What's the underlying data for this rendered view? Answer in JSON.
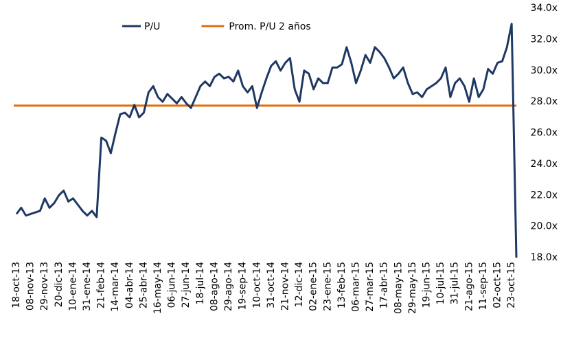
{
  "chart_data": {
    "type": "line",
    "categories": [
      "18-oct-13",
      null,
      null,
      "08-nov-13",
      null,
      null,
      "29-nov-13",
      null,
      null,
      "20-dic-13",
      null,
      null,
      "10-ene-14",
      null,
      null,
      "31-ene-14",
      null,
      null,
      "21-feb-14",
      null,
      null,
      "14-mar-14",
      null,
      null,
      "04-abr-14",
      null,
      null,
      "25-abr-14",
      null,
      null,
      "16-may-14",
      null,
      null,
      "06-jun-14",
      null,
      null,
      "27-jun-14",
      null,
      null,
      "18-jul-14",
      null,
      null,
      "08-ago-14",
      null,
      null,
      "29-ago-14",
      null,
      null,
      "19-sep-14",
      null,
      null,
      "10-oct-14",
      null,
      null,
      "31-oct-14",
      null,
      null,
      "21-nov-14",
      null,
      null,
      "12-dic-14",
      null,
      null,
      "02-ene-15",
      null,
      null,
      "23-ene-15",
      null,
      null,
      "13-feb-15",
      null,
      null,
      "06-mar-15",
      null,
      null,
      "27-mar-15",
      null,
      null,
      "17-abr-15",
      null,
      null,
      "08-may-15",
      null,
      null,
      "29-may-15",
      null,
      null,
      "19-jun-15",
      null,
      null,
      "10-jul-15",
      null,
      null,
      "31-jul-15",
      null,
      null,
      "21-ago-15",
      null,
      null,
      "11-sep-15",
      null,
      null,
      "02-oct-15",
      null,
      null,
      "23-oct-15",
      null
    ],
    "series": [
      {
        "name": "P/U",
        "color": "#1f3864",
        "values": [
          20.8,
          21.2,
          20.7,
          20.8,
          20.9,
          21.0,
          21.8,
          21.2,
          21.5,
          22.0,
          22.3,
          21.6,
          21.8,
          21.4,
          21.0,
          20.7,
          21.0,
          20.6,
          25.7,
          25.5,
          24.7,
          26.0,
          27.2,
          27.3,
          27.0,
          27.8,
          27.0,
          27.3,
          28.6,
          29.0,
          28.3,
          28.0,
          28.5,
          28.2,
          27.9,
          28.3,
          27.9,
          27.6,
          28.3,
          29.0,
          29.3,
          29.0,
          29.6,
          29.8,
          29.5,
          29.6,
          29.3,
          30.0,
          29.0,
          28.6,
          29.0,
          27.6,
          28.6,
          29.5,
          30.3,
          30.6,
          30.0,
          30.5,
          30.8,
          28.8,
          28.0,
          30.0,
          29.8,
          28.8,
          29.5,
          29.2,
          29.2,
          30.2,
          30.2,
          30.4,
          31.5,
          30.5,
          29.2,
          30.0,
          31.0,
          30.5,
          31.5,
          31.2,
          30.8,
          30.2,
          29.5,
          29.8,
          30.2,
          29.2,
          28.5,
          28.6,
          28.3,
          28.8,
          29.0,
          29.2,
          29.5,
          30.2,
          28.3,
          29.2,
          29.5,
          29.0,
          28.0,
          29.5,
          28.3,
          28.8,
          30.1,
          29.8,
          30.5,
          30.6,
          31.5,
          33.0,
          18.0
        ]
      }
    ],
    "hlines": [
      {
        "name": "Prom. P/U 2 años",
        "color": "#e46c0a",
        "value": 27.75
      }
    ],
    "ylim": [
      18,
      34
    ],
    "yticks": [
      {
        "value": 18,
        "label": "18.0x"
      },
      {
        "value": 20,
        "label": "20.0x"
      },
      {
        "value": 22,
        "label": "22.0x"
      },
      {
        "value": 24,
        "label": "24.0x"
      },
      {
        "value": 26,
        "label": "26.0x"
      },
      {
        "value": 28,
        "label": "28.0x"
      },
      {
        "value": 30,
        "label": "30.0x"
      },
      {
        "value": 32,
        "label": "32.0x"
      },
      {
        "value": 34,
        "label": "34.0x"
      }
    ]
  }
}
